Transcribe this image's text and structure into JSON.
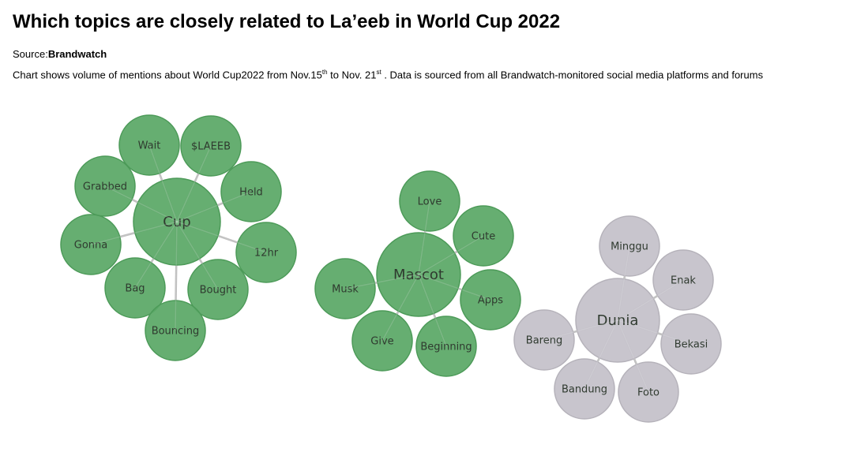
{
  "title": "Which topics are closely related to La’eeb in World Cup 2022",
  "source_label": "Source:",
  "source_name": "Brandwatch",
  "description": {
    "p1": "Chart shows volume of mentions about World Cup2022 from Nov.15",
    "sup1": "th",
    "p2": " to Nov. 21",
    "sup2": "st",
    "p3": " . Data is sourced from all Brandwatch-monitored social media platforms and forums"
  },
  "chart_data": {
    "type": "bubble-network",
    "colors": {
      "green": "#5aa866",
      "gray": "#c4c1c9",
      "link": "#b9b9b9"
    },
    "clusters": [
      {
        "center": "Cup",
        "color": "green",
        "topics": [
          "Wait",
          "$LAEEB",
          "Grabbed",
          "Held",
          "Gonna",
          "12hr",
          "Bag",
          "Bought",
          "Bouncing"
        ]
      },
      {
        "center": "Mascot",
        "color": "green",
        "topics": [
          "Love",
          "Cute",
          "Musk",
          "Apps",
          "Give",
          "Beginning"
        ]
      },
      {
        "center": "Dunia",
        "color": "gray",
        "topics": [
          "Minggu",
          "Enak",
          "Bareng",
          "Bekasi",
          "Bandung",
          "Foto"
        ]
      }
    ]
  }
}
